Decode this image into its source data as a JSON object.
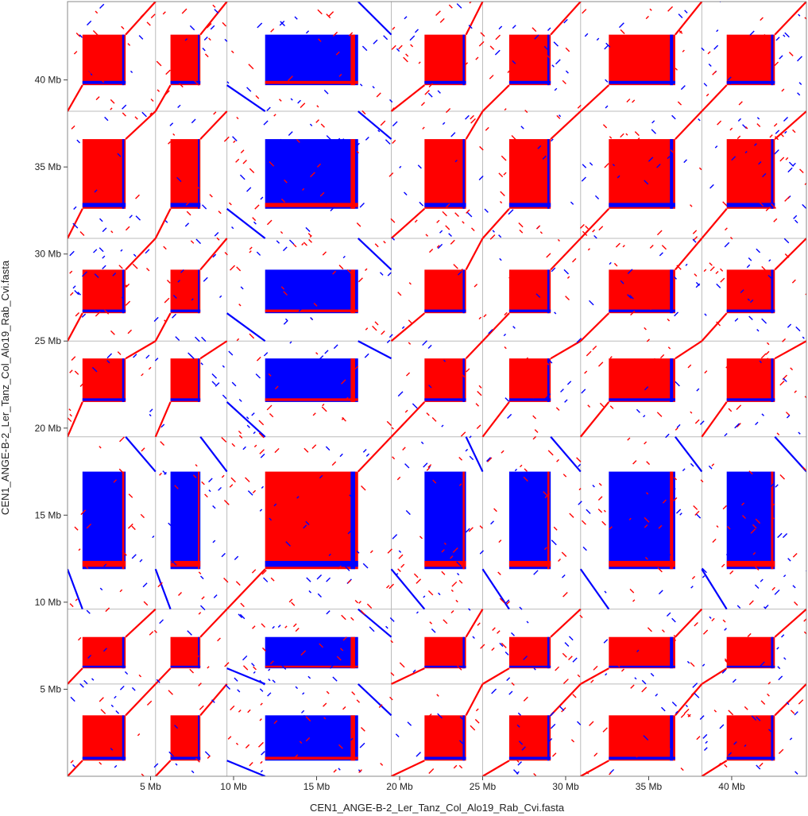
{
  "chart_data": {
    "type": "scatter",
    "subtype": "dotplot self-alignment",
    "xlabel": "CEN1_ANGE-B-2_Ler_Tanz_Col_Alo19_Rab_Cvi.fasta",
    "ylabel": "CEN1_ANGE-B-2_Ler_Tanz_Col_Alo19_Rab_Cvi.fasta",
    "x_tick_labels": [
      "5 Mb",
      "10 Mb",
      "15 Mb",
      "20 Mb",
      "25 Mb",
      "30 Mb",
      "35 Mb",
      "40 Mb"
    ],
    "y_tick_labels": [
      "5 Mb",
      "10 Mb",
      "15 Mb",
      "20 Mb",
      "25 Mb",
      "30 Mb",
      "35 Mb",
      "40 Mb"
    ],
    "tick_values_mb": [
      5,
      10,
      15,
      20,
      25,
      30,
      35,
      40
    ],
    "xlim": [
      0,
      44.5
    ],
    "ylim": [
      0,
      44.5
    ],
    "sequence_boundaries_mb": [
      5.3,
      9.6,
      19.5,
      25.0,
      30.9,
      38.2
    ],
    "colors": {
      "forward": "#ff0000",
      "reverse": "#0000ff",
      "grid": "#bbbbbb",
      "frame": "#888888"
    },
    "segments": [
      {
        "name": "ANGE-B-2",
        "start": 0,
        "end": 5.3,
        "cen": [
          0.9,
          3.5
        ],
        "inverted": false
      },
      {
        "name": "Ler",
        "start": 5.3,
        "end": 9.6,
        "cen": [
          6.2,
          8.0
        ],
        "inverted": false
      },
      {
        "name": "Tanz",
        "start": 9.6,
        "end": 19.5,
        "cen": [
          11.9,
          17.5
        ],
        "inverted": true
      },
      {
        "name": "Col",
        "start": 19.5,
        "end": 25.0,
        "cen": [
          21.5,
          24.0
        ],
        "inverted": false
      },
      {
        "name": "Alo19",
        "start": 25.0,
        "end": 30.9,
        "cen": [
          26.6,
          29.1
        ],
        "inverted": false
      },
      {
        "name": "Rab",
        "start": 30.9,
        "end": 38.2,
        "cen": [
          32.6,
          36.6
        ],
        "inverted": false
      },
      {
        "name": "Cvi",
        "start": 38.2,
        "end": 44.5,
        "cen": [
          39.7,
          42.6
        ],
        "inverted": false
      }
    ]
  }
}
